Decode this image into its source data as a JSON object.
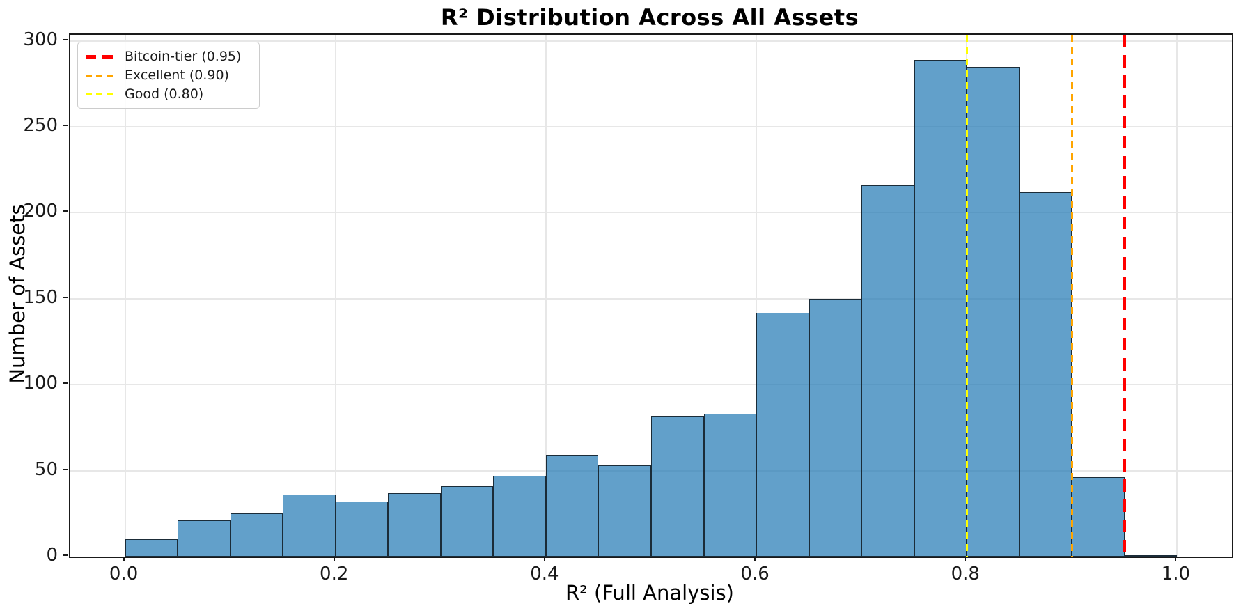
{
  "chart_data": {
    "type": "bar",
    "subtype": "histogram",
    "title": "R² Distribution Across All Assets",
    "xlabel": "R² (Full Analysis)",
    "ylabel": "Number of Assets",
    "bin_edges": [
      0.0,
      0.05,
      0.1,
      0.15,
      0.2,
      0.25,
      0.3,
      0.35,
      0.4,
      0.45,
      0.5,
      0.55,
      0.6,
      0.65,
      0.7,
      0.75,
      0.8,
      0.85,
      0.9,
      0.95,
      1.0
    ],
    "counts": [
      10,
      21,
      25,
      36,
      32,
      37,
      41,
      47,
      59,
      53,
      82,
      83,
      142,
      150,
      216,
      289,
      285,
      212,
      46,
      1
    ],
    "bar_fill_color": "#1f77b4",
    "bar_fill_opacity": 0.7,
    "bar_edge_color": "#1a1a1a",
    "xlim": [
      -0.052,
      1.052
    ],
    "ylim": [
      0,
      303.5
    ],
    "xticks": [
      {
        "value": 0.0,
        "label": "0.0"
      },
      {
        "value": 0.2,
        "label": "0.2"
      },
      {
        "value": 0.4,
        "label": "0.4"
      },
      {
        "value": 0.6,
        "label": "0.6"
      },
      {
        "value": 0.8,
        "label": "0.8"
      },
      {
        "value": 1.0,
        "label": "1.0"
      }
    ],
    "yticks": [
      {
        "value": 0,
        "label": "0"
      },
      {
        "value": 50,
        "label": "50"
      },
      {
        "value": 100,
        "label": "100"
      },
      {
        "value": 150,
        "label": "150"
      },
      {
        "value": 200,
        "label": "200"
      },
      {
        "value": 250,
        "label": "250"
      },
      {
        "value": 300,
        "label": "300"
      }
    ],
    "grid": true,
    "grid_color": "#e7e7e7",
    "legend_position": "upper-left",
    "reference_lines": [
      {
        "label": "Bitcoin-tier (0.95)",
        "x": 0.95,
        "color": "#ff0000",
        "style": "dashed",
        "weight": "thick"
      },
      {
        "label": "Excellent (0.90)",
        "x": 0.9,
        "color": "#ffa500",
        "style": "dashed",
        "weight": "medium"
      },
      {
        "label": "Good (0.80)",
        "x": 0.8,
        "color": "#ffff00",
        "style": "dashed",
        "weight": "medium"
      }
    ]
  }
}
